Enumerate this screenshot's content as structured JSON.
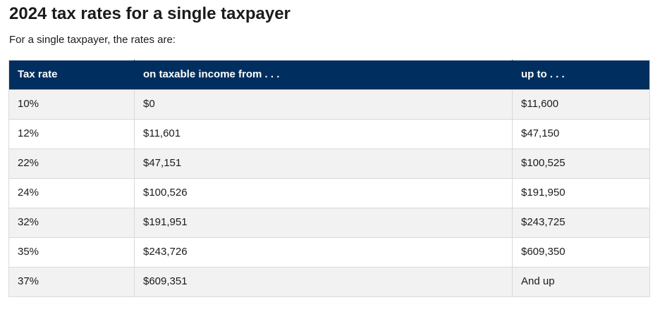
{
  "page": {
    "title": "2024 tax rates for a single taxpayer",
    "subtitle": "For a single taxpayer, the rates are:"
  },
  "table": {
    "columns": [
      "Tax rate",
      "on taxable income from . . .",
      "up to . . ."
    ],
    "rows": [
      {
        "rate": "10%",
        "from": "$0",
        "up_to": "$11,600"
      },
      {
        "rate": "12%",
        "from": "$11,601",
        "up_to": "$47,150"
      },
      {
        "rate": "22%",
        "from": "$47,151",
        "up_to": "$100,525"
      },
      {
        "rate": "24%",
        "from": "$100,526",
        "up_to": "$191,950"
      },
      {
        "rate": "32%",
        "from": "$191,951",
        "up_to": "$243,725"
      },
      {
        "rate": "35%",
        "from": "$243,726",
        "up_to": "$609,350"
      },
      {
        "rate": "37%",
        "from": "$609,351",
        "up_to": "And up"
      }
    ]
  },
  "colors": {
    "header_bg": "#002f5f",
    "header_text": "#ffffff",
    "row_alt_bg": "#f2f2f2",
    "border": "#d9d9d9",
    "text": "#1b1b1b"
  }
}
